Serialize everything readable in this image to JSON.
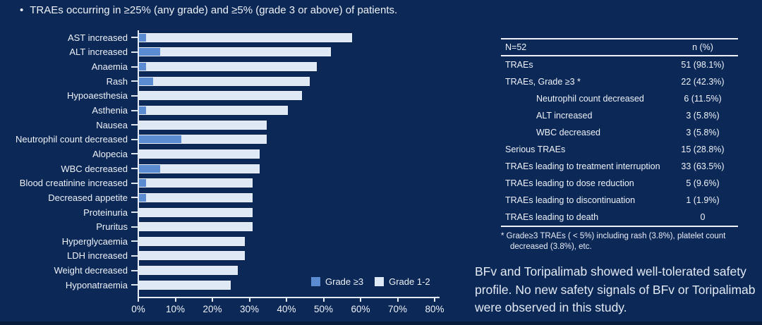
{
  "slide": {
    "bullet_glyph": "•",
    "title": "TRAEs occurring in ≥25% (any grade) and ≥5% (grade 3 or above) of patients.",
    "conclusion": "BFv and Toripalimab showed well-tolerated safety profile. No new safety signals of BFv or Toripalimab were observed in this study.",
    "stray_dot": "."
  },
  "colors": {
    "background": "#0c2857",
    "grade3_blue": "#5b8bd0",
    "grade12_light": "#dfe9f6",
    "text": "#eef2f8",
    "axis_line": "#e5ebf4"
  },
  "chart_data": {
    "type": "bar",
    "orientation": "horizontal",
    "stacked": true,
    "grid": false,
    "xlim": [
      0,
      80
    ],
    "x_tick_labels": [
      "0%",
      "10%",
      "20%",
      "30%",
      "40%",
      "50%",
      "60%",
      "70%",
      "80%"
    ],
    "legend_position": "bottom-right",
    "categories": [
      "AST increased",
      "ALT increased",
      "Anaemia",
      "Rash",
      "Hypoaesthesia",
      "Asthenia",
      "Nausea",
      "Neutrophil count decreased",
      "Alopecia",
      "WBC decreased",
      "Blood creatinine increased",
      "Decreased appetite",
      "Proteinuria",
      "Pruritus",
      "Hyperglycaemia",
      "LDH increased",
      "Weight decreased",
      "Hyponatraemia"
    ],
    "series": [
      {
        "name": "Grade ≥3",
        "color": "#5b8bd0",
        "values": [
          1.9,
          5.8,
          1.9,
          3.8,
          0,
          1.9,
          0,
          11.5,
          0,
          5.8,
          1.9,
          1.9,
          0,
          0,
          0,
          0,
          0,
          0
        ]
      },
      {
        "name": "Grade 1-2",
        "color": "#dfe9f6",
        "values": [
          55.8,
          46.1,
          46.2,
          42.4,
          44.2,
          38.5,
          34.6,
          23.1,
          32.7,
          26.9,
          28.9,
          28.9,
          30.8,
          30.8,
          28.8,
          28.8,
          26.9,
          25.0
        ]
      }
    ],
    "totals_any_grade": [
      57.7,
      51.9,
      48.1,
      46.2,
      44.2,
      40.4,
      34.6,
      34.6,
      32.7,
      32.7,
      30.8,
      30.8,
      30.8,
      30.8,
      28.8,
      28.8,
      26.9,
      25.0
    ]
  },
  "table": {
    "header": {
      "left": "N=52",
      "right": "n (%)"
    },
    "rows": [
      {
        "label": "TRAEs",
        "value": "51 (98.1%)",
        "indent": false
      },
      {
        "label": "TRAEs, Grade ≥3 *",
        "value": "22 (42.3%)",
        "indent": false
      },
      {
        "label": "Neutrophil count decreased",
        "value": "6 (11.5%)",
        "indent": true
      },
      {
        "label": "ALT increased",
        "value": "3 (5.8%)",
        "indent": true
      },
      {
        "label": "WBC decreased",
        "value": "3 (5.8%)",
        "indent": true
      },
      {
        "label": "Serious TRAEs",
        "value": "15 (28.8%)",
        "indent": false
      },
      {
        "label": "TRAEs leading to treatment interruption",
        "value": "33 (63.5%)",
        "indent": false
      },
      {
        "label": "TRAEs leading to dose reduction",
        "value": "5 (9.6%)",
        "indent": false
      },
      {
        "label": "TRAEs leading to discontinuation",
        "value": "1 (1.9%)",
        "indent": false
      },
      {
        "label": "TRAEs leading to death",
        "value": "0",
        "indent": false
      }
    ],
    "footnote": "* Grade≥3 TRAEs ( < 5%) including rash (3.8%), platelet count decreased (3.8%), etc."
  }
}
